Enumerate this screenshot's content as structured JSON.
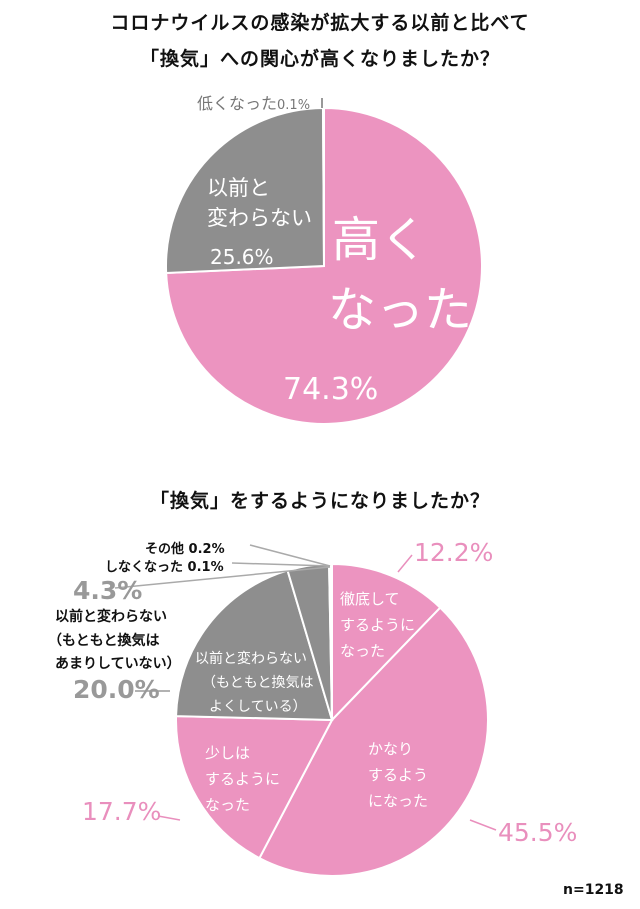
{
  "chart_data": [
    {
      "type": "pie",
      "title": "コロナウイルスの感染が拡大する以前と比べて「換気」への関心が高くなりましたか？",
      "title_line1": "コロナウイルスの感染が拡大する以前と比べて",
      "title_line2": "「換気」への関心が高くなりましたか？",
      "start": "top",
      "direction": "clockwise",
      "slices": [
        {
          "label": "高くなった",
          "label_l1": "高く",
          "label_l2": "なった",
          "value": 74.3,
          "value_label": "74.3%",
          "color": "#ec94c0"
        },
        {
          "label": "以前と変わらない",
          "label_l1": "以前と",
          "label_l2": "変わらない",
          "value": 25.6,
          "value_label": "25.6%",
          "color": "#8e8e8e"
        },
        {
          "label": "低くなった",
          "value": 0.1,
          "value_label": "0.1%",
          "color": "#8e8e8e"
        }
      ]
    },
    {
      "type": "pie",
      "title": "「換気」をするようになりましたか？",
      "start": "top",
      "direction": "clockwise",
      "note": "n=1218",
      "slices": [
        {
          "label": "徹底してするようになった",
          "lines": [
            "徹底して",
            "するように",
            "なった"
          ],
          "value": 12.2,
          "value_label": "12.2%",
          "color": "#ec94c0"
        },
        {
          "label": "かなりするようになった",
          "lines": [
            "かなり",
            "するよう",
            "になった"
          ],
          "value": 45.5,
          "value_label": "45.5%",
          "color": "#ec94c0"
        },
        {
          "label": "少しはするようになった",
          "lines": [
            "少しは",
            "するように",
            "なった"
          ],
          "value": 17.7,
          "value_label": "17.7%",
          "color": "#ec94c0"
        },
        {
          "label": "以前と変わらない（もともと換気はよくしている）",
          "lines": [
            "以前と変わらない",
            "（もともと換気は",
            "よくしている）"
          ],
          "value": 20.0,
          "value_label": "20.0%",
          "color": "#8e8e8e"
        },
        {
          "label": "以前と変わらない（もともと換気はあまりしていない）",
          "lines": [
            "以前と変わらない",
            "（もともと換気は",
            "あまりしていない）"
          ],
          "value": 4.3,
          "value_label": "4.3%",
          "color": "#8e8e8e"
        },
        {
          "label": "しなくなった",
          "value": 0.1,
          "value_label": "0.1%",
          "color": "#8e8e8e"
        },
        {
          "label": "その他",
          "value": 0.2,
          "value_label": "0.2%",
          "color": "#bbbbbb"
        }
      ]
    }
  ]
}
